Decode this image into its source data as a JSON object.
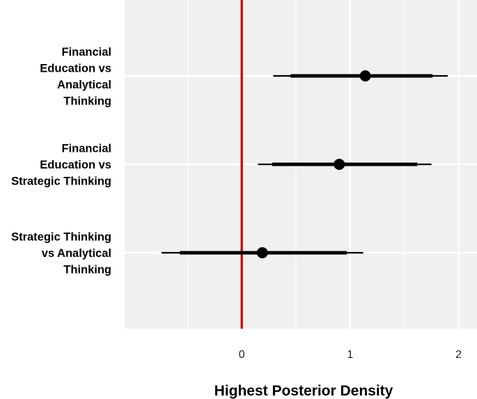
{
  "chart_data": {
    "type": "interval",
    "title": "",
    "xlabel": "Highest Posterior Density",
    "ylabel": "",
    "xlim": [
      -1.08,
      2.17
    ],
    "xticks": [
      0,
      1,
      2
    ],
    "xtick_labels": [
      "0",
      "1",
      "2"
    ],
    "grid": true,
    "reference_line": {
      "x": 0,
      "color": "#c00000"
    },
    "categories": [
      {
        "lines": [
          "Financial",
          "Education vs",
          "Analytical",
          "Thinking"
        ],
        "estimate": 1.14,
        "inner": [
          0.45,
          1.76
        ],
        "outer": [
          0.29,
          1.9
        ]
      },
      {
        "lines": [
          "Financial",
          "Education vs",
          "Strategic Thinking"
        ],
        "estimate": 0.9,
        "inner": [
          0.28,
          1.62
        ],
        "outer": [
          0.15,
          1.75
        ]
      },
      {
        "lines": [
          "Strategic Thinking",
          "vs Analytical",
          "Thinking"
        ],
        "estimate": 0.19,
        "inner": [
          -0.57,
          0.97
        ],
        "outer": [
          -0.74,
          1.12
        ]
      }
    ]
  }
}
